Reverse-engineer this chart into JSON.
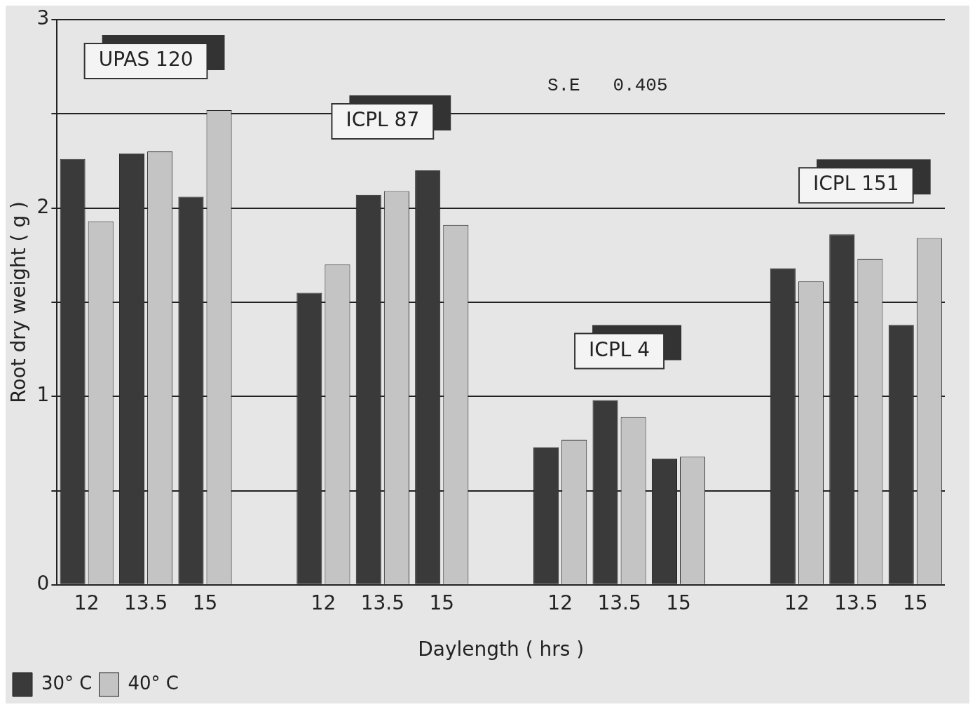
{
  "chart_data": {
    "type": "bar",
    "xlabel": "Daylength ( hrs )",
    "ylabel": "Root dry weight ( g )",
    "categories": [
      "12",
      "13.5",
      "15",
      null,
      "12",
      "13.5",
      "15",
      null,
      "12",
      "13.5",
      "15",
      null,
      "12",
      "13.5",
      "15"
    ],
    "series": [
      {
        "name": "30° C",
        "color": "#3a3a3a",
        "values": [
          2.26,
          2.29,
          2.06,
          null,
          1.55,
          2.07,
          2.2,
          null,
          0.73,
          0.98,
          0.67,
          null,
          1.68,
          1.86,
          1.38
        ]
      },
      {
        "name": "40° C",
        "color": "#c4c4c4",
        "values": [
          1.93,
          2.3,
          2.52,
          null,
          1.7,
          2.09,
          1.91,
          null,
          0.77,
          0.89,
          0.68,
          null,
          1.61,
          1.73,
          1.84
        ]
      }
    ],
    "annotations": [
      "UPAS 120",
      "ICPL 87",
      "ICPL 4",
      "ICPL 151",
      "S.E   0.405"
    ],
    "ylim": [
      0,
      3
    ],
    "yticks": [
      0,
      {
        "value": 0.5,
        "label": null
      },
      1,
      {
        "value": 1.5,
        "label": null
      },
      2,
      {
        "value": 2.5,
        "label": null
      },
      3
    ],
    "grid": "y",
    "legend": "bottom left"
  }
}
